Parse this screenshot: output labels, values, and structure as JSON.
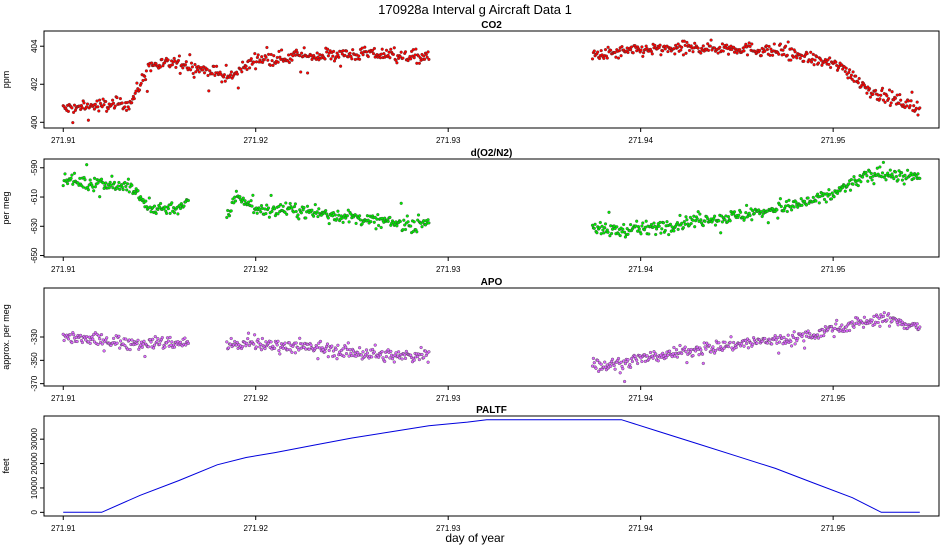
{
  "title": "170928a   Interval g Aircraft Data 1",
  "xlabel": "day of year",
  "x_ticks": [
    271.91,
    271.92,
    271.93,
    271.94,
    271.95
  ],
  "x_tick_labels": [
    "271.91",
    "271.92",
    "271.93",
    "271.94",
    "271.95"
  ],
  "chart_data": [
    {
      "type": "scatter",
      "title": "CO2",
      "ylabel": "ppm",
      "xlim": [
        271.909,
        271.9555
      ],
      "ylim": [
        399.7,
        404.8
      ],
      "yticks": [
        400,
        402,
        404
      ],
      "ytick_labels": [
        "400",
        "402",
        "404"
      ],
      "color": "#ff0000",
      "segments": [
        {
          "x": [
            271.91,
            271.912,
            271.9135,
            271.9145,
            271.916,
            271.918,
            271.9185,
            271.92,
            271.923,
            271.926,
            271.929
          ],
          "y": [
            400.7,
            400.9,
            401.0,
            403.0,
            403.1,
            402.6,
            402.3,
            403.3,
            403.5,
            403.6,
            403.4
          ]
        },
        {
          "x": [
            271.9375,
            271.94,
            271.9425,
            271.945,
            271.9475,
            271.949,
            271.9505,
            271.952,
            271.954,
            271.9545
          ],
          "y": [
            403.5,
            403.8,
            403.9,
            403.9,
            403.7,
            403.3,
            402.9,
            401.6,
            400.9,
            400.7
          ]
        }
      ]
    },
    {
      "type": "scatter",
      "title": "d(O2/N2)",
      "ylabel": "per meg",
      "xlim": [
        271.909,
        271.9555
      ],
      "ylim": [
        -651,
        -584
      ],
      "yticks": [
        -650,
        -630,
        -610,
        -590
      ],
      "ytick_labels": [
        "-650",
        "-630",
        "-610",
        "-590"
      ],
      "color": "#00ee00",
      "segments": [
        {
          "x": [
            271.91,
            271.911,
            271.912,
            271.9135,
            271.9145,
            271.916,
            271.9165
          ],
          "y": [
            -597,
            -600,
            -601,
            -603,
            -618,
            -617,
            -613
          ]
        },
        {
          "x": [
            271.9185,
            271.919,
            271.92,
            271.922,
            271.924,
            271.926,
            271.928,
            271.929
          ],
          "y": [
            -625,
            -608,
            -618,
            -619,
            -622,
            -626,
            -629,
            -626
          ]
        },
        {
          "x": [
            271.9375,
            271.938,
            271.94,
            271.9425,
            271.945,
            271.948,
            271.95,
            271.9515,
            271.9525,
            271.9545
          ],
          "y": [
            -630,
            -633,
            -632,
            -627,
            -623,
            -616,
            -608,
            -597,
            -594,
            -597
          ]
        }
      ]
    },
    {
      "type": "scatter",
      "title": "APO",
      "ylabel": "approx. per meg",
      "xlim": [
        271.909,
        271.9555
      ],
      "ylim": [
        -372,
        -288
      ],
      "yticks": [
        -370,
        -350,
        -330
      ],
      "ytick_labels": [
        "-370",
        "-350",
        "-330"
      ],
      "color": "#dd66ff",
      "segments": [
        {
          "x": [
            271.91,
            271.912,
            271.914,
            271.9165
          ],
          "y": [
            -329,
            -333,
            -335,
            -335
          ]
        },
        {
          "x": [
            271.9185,
            271.92,
            271.922,
            271.924,
            271.926,
            271.928,
            271.929
          ],
          "y": [
            -337,
            -336,
            -338,
            -341,
            -345,
            -347,
            -343
          ]
        },
        {
          "x": [
            271.9375,
            271.938,
            271.94,
            271.9425,
            271.945,
            271.948,
            271.95,
            271.9525,
            271.9545
          ],
          "y": [
            -352,
            -355,
            -349,
            -342,
            -336,
            -331,
            -323,
            -314,
            -321
          ]
        }
      ]
    },
    {
      "type": "line",
      "title": "PALTF",
      "ylabel": "feet",
      "xlim": [
        271.909,
        271.9555
      ],
      "ylim": [
        -1500,
        39500
      ],
      "yticks": [
        0,
        10000,
        20000,
        30000
      ],
      "ytick_labels": [
        "0",
        "10000",
        "20000",
        "30000"
      ],
      "color": "#0000dd",
      "series": [
        {
          "name": "PALTF",
          "x": [
            271.91,
            271.912,
            271.914,
            271.916,
            271.918,
            271.9195,
            271.921,
            271.923,
            271.925,
            271.927,
            271.929,
            271.931,
            271.932,
            271.9335,
            271.935,
            271.937,
            271.939,
            271.941,
            271.943,
            271.945,
            271.947,
            271.949,
            271.951,
            271.9525,
            271.9545
          ],
          "y": [
            0,
            0,
            7000,
            13000,
            19500,
            22500,
            24500,
            27500,
            30500,
            33000,
            35500,
            37000,
            38000,
            38000,
            38000,
            38000,
            38000,
            33000,
            28000,
            23000,
            18000,
            12000,
            6000,
            0,
            0
          ]
        }
      ]
    }
  ]
}
